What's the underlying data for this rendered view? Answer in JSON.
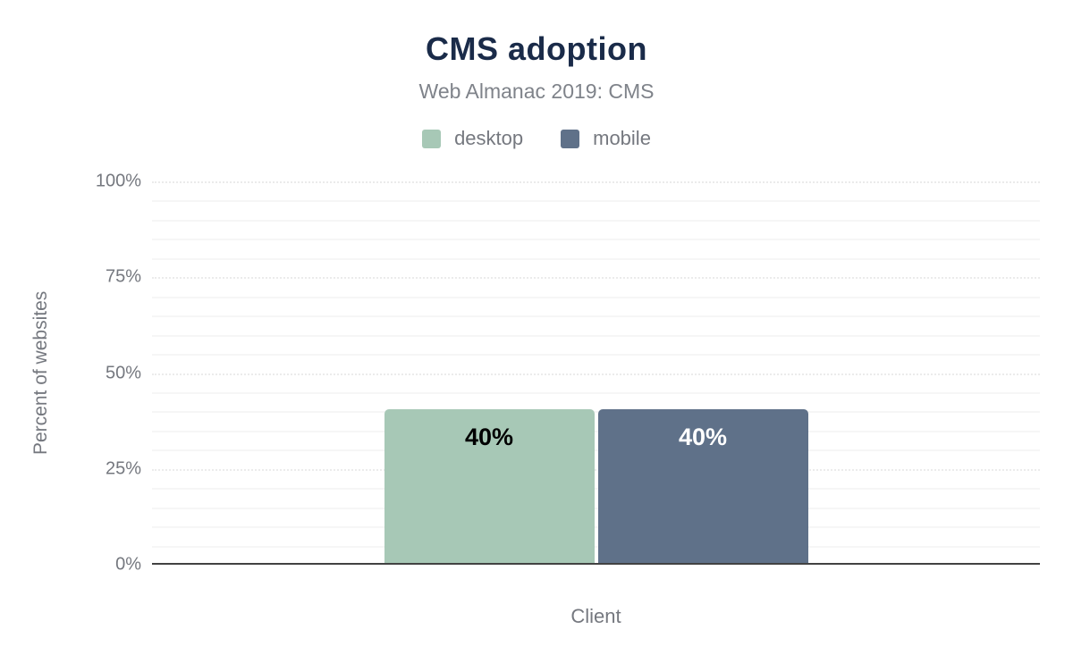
{
  "chart_data": {
    "type": "bar",
    "title": "CMS adoption",
    "subtitle": "Web Almanac 2019: CMS",
    "xlabel": "Client",
    "ylabel": "Percent of websites",
    "categories": [
      "Client"
    ],
    "series": [
      {
        "name": "desktop",
        "values": [
          40
        ],
        "data_label": "40%",
        "color": "#a7c8b6",
        "label_color": "#000000"
      },
      {
        "name": "mobile",
        "values": [
          40
        ],
        "data_label": "40%",
        "color": "#5f7189",
        "label_color": "#ffffff"
      }
    ],
    "y_axis": {
      "min": 0,
      "max": 100,
      "major_ticks": [
        0,
        25,
        50,
        75,
        100
      ],
      "tick_labels": [
        "0%",
        "25%",
        "50%",
        "75%",
        "100%"
      ],
      "minor_step": 5
    },
    "legend_position": "top",
    "grid": true
  },
  "colors": {
    "title": "#1a2b49",
    "subtitle": "#7f838a",
    "axis_text": "#75787f",
    "axis_line": "#424242",
    "grid_minor": "#f6f6f6",
    "grid_major": "#ebebeb",
    "background": "#ffffff"
  }
}
